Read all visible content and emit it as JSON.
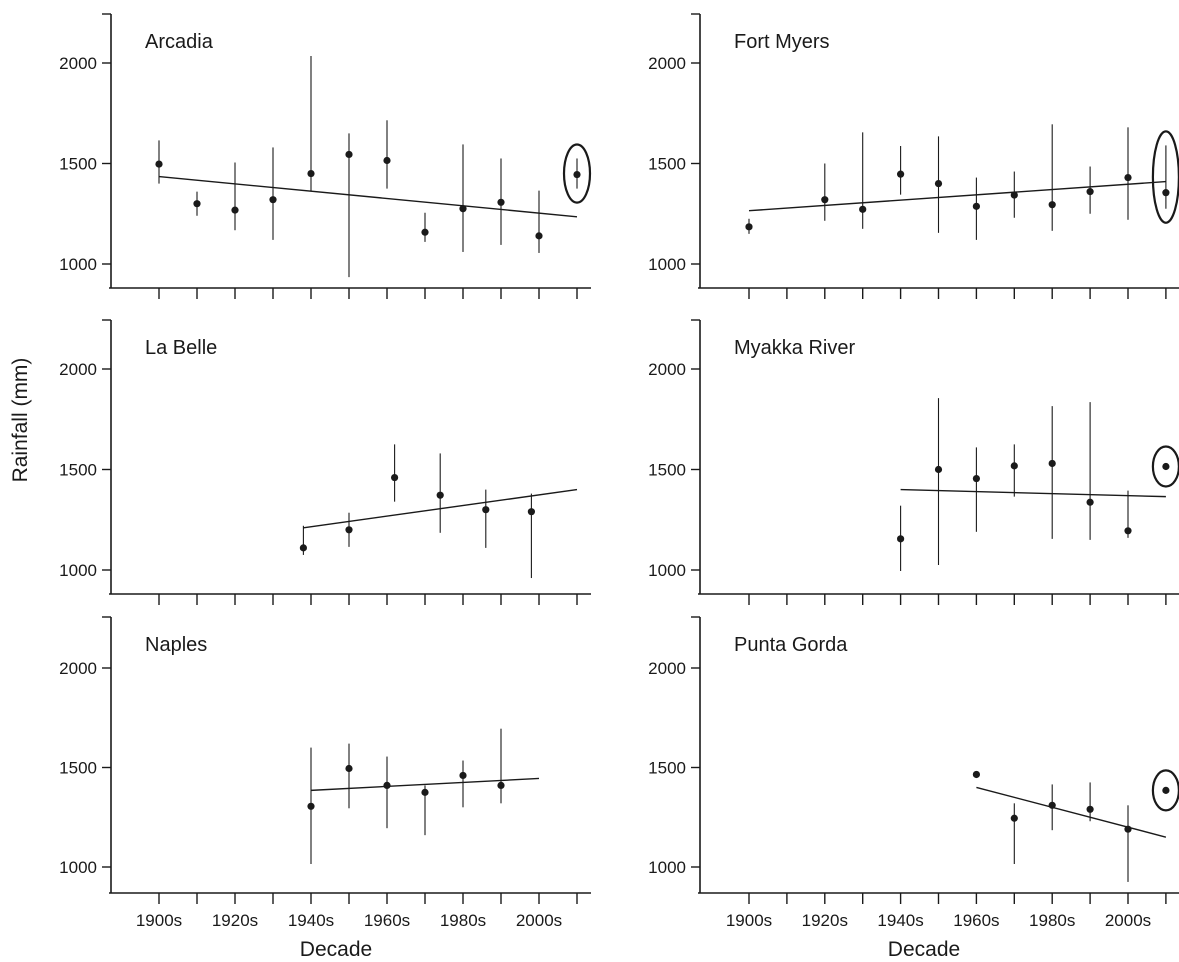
{
  "figure": {
    "ylabel": "Rainfall (mm)",
    "xlabel": "Decade",
    "x_tick_labels": [
      "1900s",
      "1920s",
      "1940s",
      "1960s",
      "1980s",
      "2000s"
    ],
    "y_tick_labels": [
      "1000",
      "1500",
      "2000"
    ],
    "colors": {
      "ink": "#1a1a1a",
      "background": "#ffffff"
    }
  },
  "chart_data": [
    {
      "type": "scatter",
      "title": "Arcadia",
      "xlim": [
        1893,
        2013
      ],
      "ylim": [
        880,
        2250
      ],
      "x": [
        1900,
        1910,
        1920,
        1930,
        1940,
        1950,
        1960,
        1970,
        1980,
        1990,
        2000
      ],
      "y": [
        1497,
        1300,
        1268,
        1320,
        1450,
        1545,
        1515,
        1158,
        1275,
        1307,
        1140
      ],
      "err_low": [
        1400,
        1240,
        1168,
        1120,
        1365,
        935,
        1375,
        1110,
        1060,
        1095,
        1055
      ],
      "err_high": [
        1615,
        1360,
        1505,
        1580,
        2035,
        1650,
        1715,
        1255,
        1595,
        1525,
        1365
      ],
      "trend": [
        [
          1900,
          1435
        ],
        [
          2010,
          1235
        ]
      ],
      "highlight": {
        "x": 2010,
        "y": 1445,
        "err_low": 1375,
        "err_high": 1525
      }
    },
    {
      "type": "scatter",
      "title": "Fort Myers",
      "xlim": [
        1893,
        2013
      ],
      "ylim": [
        880,
        2250
      ],
      "x": [
        1900,
        1920,
        1930,
        1940,
        1950,
        1960,
        1970,
        1980,
        1990,
        2000
      ],
      "y": [
        1185,
        1320,
        1272,
        1447,
        1400,
        1287,
        1343,
        1295,
        1360,
        1430
      ],
      "err_low": [
        1150,
        1215,
        1175,
        1345,
        1155,
        1120,
        1230,
        1165,
        1250,
        1220
      ],
      "err_high": [
        1225,
        1500,
        1655,
        1587,
        1635,
        1430,
        1460,
        1695,
        1485,
        1680
      ],
      "trend": [
        [
          1900,
          1265
        ],
        [
          2010,
          1410
        ]
      ],
      "highlight": {
        "x": 2010,
        "y": 1355,
        "err_low": 1275,
        "err_high": 1590
      }
    },
    {
      "type": "scatter",
      "title": "La Belle",
      "xlim": [
        1893,
        2013
      ],
      "ylim": [
        880,
        2250
      ],
      "x": [
        1938,
        1950,
        1962,
        1974,
        1986,
        1998
      ],
      "y": [
        1110,
        1200,
        1460,
        1372,
        1300,
        1290
      ],
      "err_low": [
        1075,
        1115,
        1340,
        1185,
        1110,
        960
      ],
      "err_high": [
        1220,
        1285,
        1625,
        1580,
        1400,
        1380
      ],
      "trend": [
        [
          1938,
          1210
        ],
        [
          2010,
          1400
        ]
      ]
    },
    {
      "type": "scatter",
      "title": "Myakka River",
      "xlim": [
        1893,
        2013
      ],
      "ylim": [
        880,
        2250
      ],
      "x": [
        1940,
        1950,
        1960,
        1970,
        1980,
        1990,
        2000
      ],
      "y": [
        1155,
        1500,
        1455,
        1518,
        1530,
        1337,
        1195
      ],
      "err_low": [
        995,
        1025,
        1190,
        1365,
        1155,
        1150,
        1160
      ],
      "err_high": [
        1320,
        1855,
        1610,
        1625,
        1815,
        1835,
        1395
      ],
      "trend": [
        [
          1940,
          1400
        ],
        [
          2010,
          1365
        ]
      ],
      "highlight": {
        "x": 2010,
        "y": 1515
      }
    },
    {
      "type": "scatter",
      "title": "Naples",
      "xlim": [
        1893,
        2013
      ],
      "ylim": [
        880,
        2250
      ],
      "x": [
        1940,
        1950,
        1960,
        1970,
        1980,
        1990
      ],
      "y": [
        1305,
        1495,
        1410,
        1375,
        1460,
        1410
      ],
      "err_low": [
        1015,
        1295,
        1195,
        1160,
        1300,
        1320
      ],
      "err_high": [
        1600,
        1620,
        1555,
        1410,
        1535,
        1695
      ],
      "trend": [
        [
          1940,
          1385
        ],
        [
          2000,
          1445
        ]
      ]
    },
    {
      "type": "scatter",
      "title": "Punta Gorda",
      "xlim": [
        1893,
        2013
      ],
      "ylim": [
        880,
        2250
      ],
      "x": [
        1960,
        1970,
        1980,
        1990,
        2000
      ],
      "y": [
        1465,
        1245,
        1310,
        1290,
        1190
      ],
      "err_low": [
        1465,
        1015,
        1185,
        1230,
        925
      ],
      "err_high": [
        1465,
        1320,
        1415,
        1425,
        1310
      ],
      "trend": [
        [
          1960,
          1400
        ],
        [
          2010,
          1150
        ]
      ],
      "highlight": {
        "x": 2010,
        "y": 1385
      }
    }
  ]
}
